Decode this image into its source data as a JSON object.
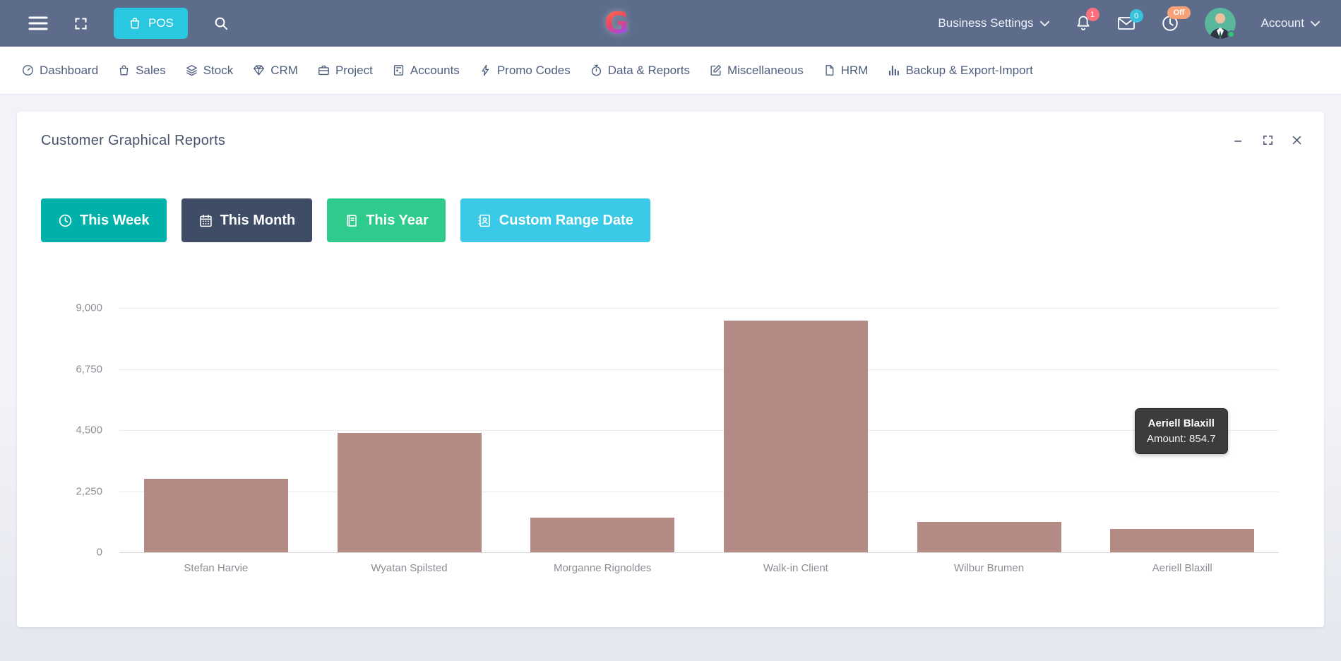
{
  "topbar": {
    "pos_button": "POS",
    "logo_letter": "G",
    "business_settings": "Business Settings",
    "account": "Account",
    "notification_badge": "1",
    "message_badge": "0",
    "clock_badge": "Off"
  },
  "nav": {
    "items": [
      {
        "label": "Dashboard",
        "icon": "dashboard-icon"
      },
      {
        "label": "Sales",
        "icon": "sales-bag-icon"
      },
      {
        "label": "Stock",
        "icon": "stock-layers-icon"
      },
      {
        "label": "CRM",
        "icon": "crm-diamond-icon"
      },
      {
        "label": "Project",
        "icon": "project-briefcase-icon"
      },
      {
        "label": "Accounts",
        "icon": "accounts-calculator-icon"
      },
      {
        "label": "Promo Codes",
        "icon": "promo-lightning-icon"
      },
      {
        "label": "Data & Reports",
        "icon": "reports-stopwatch-icon"
      },
      {
        "label": "Miscellaneous",
        "icon": "miscellaneous-edit-icon"
      },
      {
        "label": "HRM",
        "icon": "hrm-file-icon"
      },
      {
        "label": "Backup & Export-Import",
        "icon": "backup-chart-icon"
      }
    ]
  },
  "panel": {
    "title": "Customer Graphical Reports",
    "filters": [
      {
        "label": "This Week",
        "color": "#00b1a9",
        "icon": "clock-icon"
      },
      {
        "label": "This Month",
        "color": "#3f4c66",
        "icon": "calendar-icon"
      },
      {
        "label": "This Year",
        "color": "#2ecb8c",
        "icon": "book-icon"
      },
      {
        "label": "Custom Range Date",
        "color": "#3ac9e6",
        "icon": "address-book-icon"
      }
    ]
  },
  "chart_data": {
    "type": "bar",
    "title": "Customer Graphical Reports",
    "categories": [
      "Stefan Harvie",
      "Wyatan Spilsted",
      "Morganne Rignoldes",
      "Walk-in Client",
      "Wilbur Brumen",
      "Aeriell Blaxill"
    ],
    "values": [
      2700,
      4400,
      1270,
      8520,
      1120,
      854.7
    ],
    "ylim": [
      0,
      9000
    ],
    "yticks": [
      9000,
      6750,
      4500,
      2250,
      0
    ],
    "ytick_labels": [
      "9,000",
      "6,750",
      "4,500",
      "2,250",
      "0"
    ],
    "xlabel": "",
    "ylabel": "",
    "grid": true,
    "legend": false,
    "bar_color": "#b38a84",
    "tooltip": {
      "title": "Aeriell Blaxill",
      "label": "Amount: 854.7"
    }
  }
}
